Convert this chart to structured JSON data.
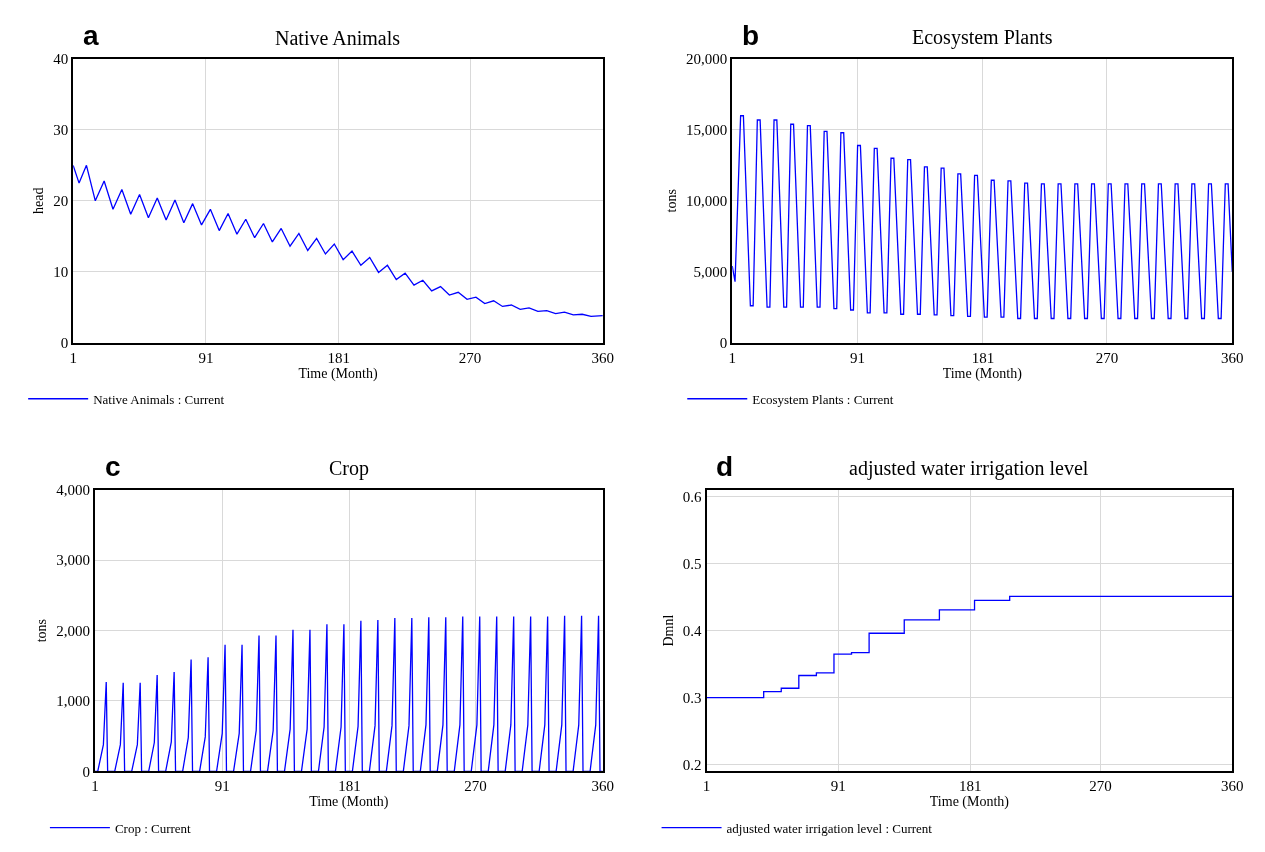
{
  "chart_data": [
    {
      "type": "line",
      "title": "Native Animals",
      "xlabel": "Time (Month)",
      "ylabel": "head",
      "annotations": [
        "a"
      ],
      "xlim": [
        1,
        360
      ],
      "xticks": [
        1,
        91,
        181,
        270,
        360
      ],
      "ylim": [
        0,
        40
      ],
      "yticks": [
        0,
        10,
        20,
        30,
        40
      ],
      "grid": true,
      "legend": "bottom",
      "series": [
        {
          "name": "Native Animals : Current",
          "color": "#0000ff",
          "x": [
            1,
            5,
            10,
            16,
            22,
            28,
            34,
            40,
            46,
            52,
            58,
            64,
            70,
            76,
            82,
            88,
            94,
            100,
            106,
            112,
            118,
            124,
            130,
            136,
            142,
            148,
            154,
            160,
            166,
            172,
            178,
            184,
            190,
            196,
            202,
            208,
            214,
            220,
            226,
            232,
            238,
            244,
            250,
            256,
            262,
            268,
            274,
            280,
            286,
            292,
            298,
            304,
            310,
            316,
            322,
            328,
            334,
            340,
            346,
            352,
            360
          ],
          "values": [
            25,
            22.5,
            25,
            20,
            22.8,
            18.8,
            21.6,
            18.1,
            20.9,
            17.6,
            20.4,
            17.3,
            20.1,
            16.9,
            19.6,
            16.6,
            18.8,
            15.8,
            18.2,
            15.3,
            17.4,
            14.8,
            16.8,
            14.2,
            16.1,
            13.6,
            15.4,
            13.0,
            14.7,
            12.5,
            13.9,
            11.7,
            12.9,
            10.9,
            12.0,
            9.9,
            10.9,
            8.9,
            9.8,
            8.1,
            8.8,
            7.3,
            7.9,
            6.7,
            7.1,
            6.1,
            6.4,
            5.5,
            5.9,
            5.1,
            5.3,
            4.7,
            4.9,
            4.4,
            4.5,
            4.1,
            4.3,
            3.9,
            4.0,
            3.7,
            3.8
          ]
        }
      ]
    },
    {
      "type": "line",
      "title": "Ecosystem Plants",
      "xlabel": "Time (Month)",
      "ylabel": "tons",
      "annotations": [
        "b"
      ],
      "xlim": [
        1,
        360
      ],
      "xticks": [
        1,
        91,
        181,
        270,
        360
      ],
      "ylim": [
        0,
        20000
      ],
      "yticks": [
        0,
        {
          "value": 5000,
          "label": "5,000"
        },
        {
          "value": 10000,
          "label": "10,000"
        },
        {
          "value": 15000,
          "label": "15,000"
        },
        {
          "value": 20000,
          "label": "20,000"
        }
      ],
      "grid": true,
      "legend": "bottom",
      "series": [
        {
          "name": "Ecosystem Plants : Current",
          "color": "#0000ff",
          "x": [
            1,
            3,
            7,
            9,
            14,
            16,
            19,
            21,
            26,
            28,
            31,
            33,
            38,
            40,
            43,
            45,
            50,
            52,
            55,
            57,
            62,
            64,
            67,
            69,
            74,
            76,
            79,
            81,
            86,
            88,
            91,
            93,
            98,
            100,
            103,
            105,
            110,
            112,
            115,
            117,
            122,
            124,
            127,
            129,
            134,
            136,
            139,
            141,
            146,
            148,
            151,
            153,
            158,
            160,
            163,
            165,
            170,
            172,
            175,
            177,
            182,
            184,
            187,
            189,
            194,
            196,
            199,
            201,
            206,
            208,
            211,
            213,
            218,
            220,
            223,
            225,
            230,
            232,
            235,
            237,
            242,
            244,
            247,
            249,
            254,
            256,
            259,
            261,
            266,
            268,
            271,
            273,
            278,
            280,
            283,
            285,
            290,
            292,
            295,
            297,
            302,
            304,
            307,
            309,
            314,
            316,
            319,
            321,
            326,
            328,
            331,
            333,
            338,
            340,
            343,
            345,
            350,
            352,
            355,
            357,
            360
          ],
          "values": [
            5400,
            4300,
            16000,
            16000,
            2600,
            2600,
            15700,
            15700,
            2500,
            2500,
            15700,
            15700,
            2500,
            2500,
            15400,
            15400,
            2500,
            2500,
            15300,
            15300,
            2500,
            2500,
            14900,
            14900,
            2400,
            2400,
            14800,
            14800,
            2300,
            2300,
            13900,
            13900,
            2100,
            2100,
            13700,
            13700,
            2100,
            2100,
            13000,
            13000,
            2000,
            2000,
            12900,
            12900,
            2000,
            2000,
            12400,
            12400,
            1950,
            1950,
            12300,
            12300,
            1900,
            1900,
            11900,
            11900,
            1850,
            1850,
            11800,
            11800,
            1800,
            1800,
            11450,
            11450,
            1800,
            1800,
            11400,
            11400,
            1700,
            1700,
            11250,
            11250,
            1700,
            1700,
            11200,
            11200,
            1700,
            1700,
            11200,
            11200,
            1700,
            1700,
            11200,
            11200,
            1700,
            1700,
            11200,
            11200,
            1700,
            1700,
            11200,
            11200,
            1700,
            1700,
            11200,
            11200,
            1700,
            1700,
            11200,
            11200,
            1700,
            1700,
            11200,
            11200,
            1700,
            1700,
            11200,
            11200,
            1700,
            1700,
            11200,
            11200,
            1700,
            1700,
            11200,
            11200,
            1700,
            1700,
            11200,
            11200,
            5000
          ]
        }
      ]
    },
    {
      "type": "line",
      "title": "Crop",
      "xlabel": "Time (Month)",
      "ylabel": "tons",
      "annotations": [
        "c"
      ],
      "xlim": [
        1,
        360
      ],
      "xticks": [
        1,
        91,
        181,
        270,
        360
      ],
      "ylim": [
        0,
        4000
      ],
      "yticks": [
        0,
        {
          "value": 1000,
          "label": "1,000"
        },
        {
          "value": 2000,
          "label": "2,000"
        },
        {
          "value": 3000,
          "label": "3,000"
        },
        {
          "value": 4000,
          "label": "4,000"
        }
      ],
      "grid": true,
      "legend": "bottom",
      "series": [
        {
          "name": "Crop : Current",
          "color": "#0000ff",
          "x": [
            1,
            3,
            7,
            9,
            10,
            15,
            19,
            21,
            22,
            27,
            31,
            33,
            34,
            39,
            43,
            45,
            46,
            51,
            55,
            57,
            58,
            63,
            67,
            69,
            70,
            75,
            79,
            81,
            82,
            87,
            91,
            93,
            94,
            99,
            103,
            105,
            106,
            111,
            115,
            117,
            118,
            123,
            127,
            129,
            130,
            135,
            139,
            141,
            142,
            147,
            151,
            153,
            154,
            159,
            163,
            165,
            166,
            171,
            175,
            177,
            178,
            183,
            187,
            189,
            190,
            195,
            199,
            201,
            202,
            207,
            211,
            213,
            214,
            219,
            223,
            225,
            226,
            231,
            235,
            237,
            238,
            243,
            247,
            249,
            250,
            255,
            259,
            261,
            262,
            267,
            271,
            273,
            274,
            279,
            283,
            285,
            286,
            291,
            295,
            297,
            298,
            303,
            307,
            309,
            310,
            315,
            319,
            321,
            322,
            327,
            331,
            333,
            334,
            339,
            343,
            345,
            346,
            351,
            355,
            357,
            358,
            360
          ],
          "values": [
            0,
            0,
            380,
            1270,
            0,
            0,
            380,
            1260,
            0,
            0,
            380,
            1260,
            0,
            0,
            410,
            1370,
            0,
            0,
            420,
            1410,
            0,
            0,
            480,
            1590,
            0,
            0,
            490,
            1620,
            0,
            0,
            540,
            1800,
            0,
            0,
            540,
            1800,
            0,
            0,
            580,
            1930,
            0,
            0,
            580,
            1930,
            0,
            0,
            600,
            2010,
            0,
            0,
            600,
            2010,
            0,
            0,
            630,
            2090,
            0,
            0,
            630,
            2090,
            0,
            0,
            640,
            2140,
            0,
            0,
            650,
            2150,
            0,
            0,
            650,
            2180,
            0,
            0,
            650,
            2180,
            0,
            0,
            660,
            2190,
            0,
            0,
            660,
            2190,
            0,
            0,
            660,
            2200,
            0,
            0,
            660,
            2200,
            0,
            0,
            660,
            2200,
            0,
            0,
            660,
            2200,
            0,
            0,
            660,
            2200,
            0,
            0,
            660,
            2200,
            0,
            0,
            660,
            2210,
            0,
            0,
            660,
            2210,
            0,
            0,
            660,
            2210,
            0,
            0
          ]
        }
      ]
    },
    {
      "type": "step",
      "title": "adjusted water irrigation level",
      "xlabel": "Time (Month)",
      "ylabel": "Dmnl",
      "annotations": [
        "d"
      ],
      "xlim": [
        1,
        360
      ],
      "xticks": [
        1,
        91,
        181,
        270,
        360
      ],
      "ylim": [
        0.19,
        0.61
      ],
      "yticks": [
        0.2,
        0.3,
        0.4,
        0.5,
        0.6
      ],
      "grid": true,
      "legend": "bottom",
      "series": [
        {
          "name": "adjusted water irrigation level : Current",
          "color": "#0000ff",
          "x": [
            1,
            40,
            52,
            64,
            76,
            88,
            100,
            112,
            136,
            160,
            184,
            208,
            360
          ],
          "values": [
            0.3,
            0.309,
            0.314,
            0.333,
            0.337,
            0.365,
            0.367,
            0.396,
            0.416,
            0.431,
            0.445,
            0.451,
            0.451
          ]
        }
      ]
    }
  ]
}
